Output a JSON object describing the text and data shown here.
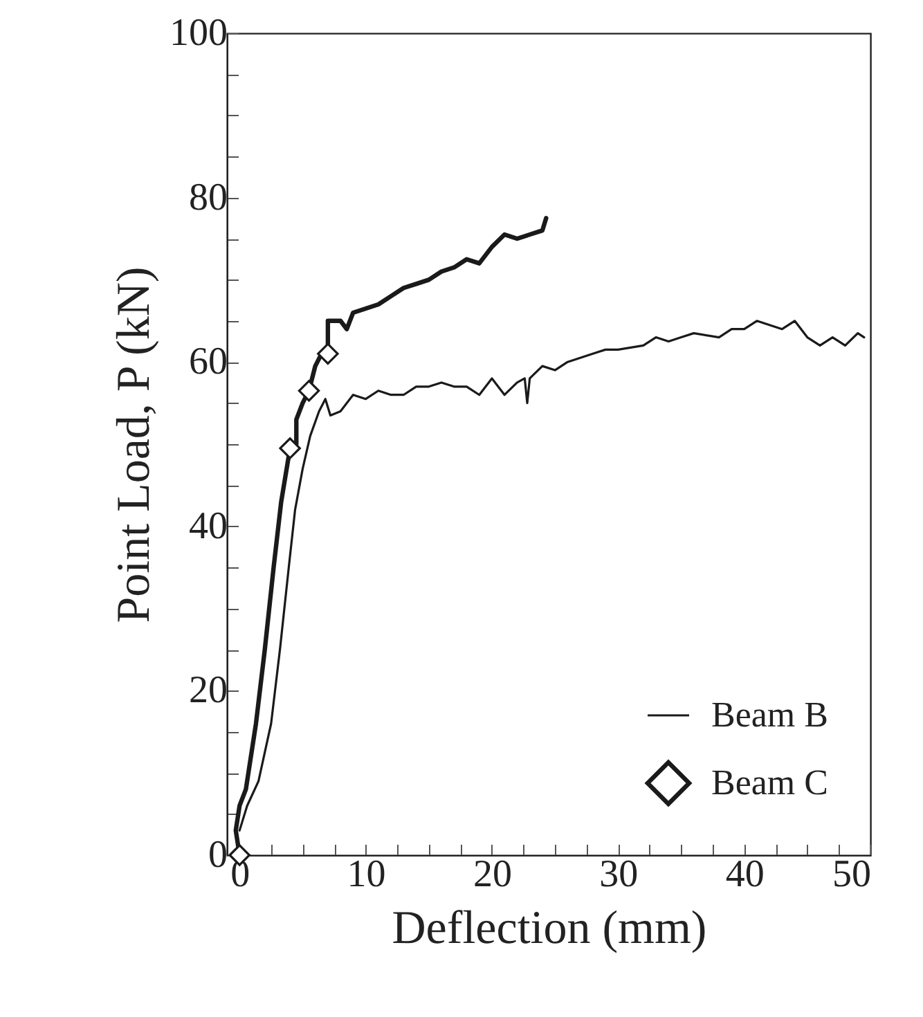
{
  "chart_data": {
    "type": "line",
    "xlabel": "Deflection (mm)",
    "ylabel": "Point Load, P (kN)",
    "xlim": [
      -1,
      50
    ],
    "ylim": [
      0,
      100
    ],
    "xticks": [
      0,
      {
        "value": 2.5,
        "label": null
      },
      {
        "value": 5,
        "label": null
      },
      {
        "value": 7.5,
        "label": null
      },
      10,
      {
        "value": 12.5,
        "label": null
      },
      {
        "value": 15,
        "label": null
      },
      {
        "value": 17.5,
        "label": null
      },
      20,
      {
        "value": 22.5,
        "label": null
      },
      {
        "value": 25,
        "label": null
      },
      {
        "value": 27.5,
        "label": null
      },
      30,
      {
        "value": 32.5,
        "label": null
      },
      {
        "value": 35,
        "label": null
      },
      {
        "value": 37.5,
        "label": null
      },
      40,
      {
        "value": 42.5,
        "label": null
      },
      {
        "value": 45,
        "label": null
      },
      {
        "value": 47.5,
        "label": null
      },
      50
    ],
    "yticks": [
      0,
      {
        "value": 5,
        "label": null
      },
      {
        "value": 10,
        "label": null
      },
      {
        "value": 15,
        "label": null
      },
      20,
      {
        "value": 25,
        "label": null
      },
      {
        "value": 30,
        "label": null
      },
      {
        "value": 35,
        "label": null
      },
      40,
      {
        "value": 45,
        "label": null
      },
      {
        "value": 50,
        "label": null
      },
      {
        "value": 55,
        "label": null
      },
      60,
      {
        "value": 65,
        "label": null
      },
      {
        "value": 70,
        "label": null
      },
      {
        "value": 75,
        "label": null
      },
      80,
      {
        "value": 85,
        "label": null
      },
      {
        "value": 90,
        "label": null
      },
      {
        "value": 95,
        "label": null
      },
      100
    ],
    "grid": false,
    "legend": "bottom right",
    "line_style": "solid",
    "series": [
      {
        "name": "Beam B",
        "color": "#1a1a1a",
        "x": [
          0,
          0.6,
          1.5,
          2.5,
          3.2,
          3.9,
          4.4,
          5,
          5.6,
          6.3,
          6.8,
          7.2,
          8,
          9,
          10,
          11,
          12,
          13,
          14,
          15,
          16,
          17,
          18,
          19,
          20,
          21,
          22,
          22.6,
          22.8,
          23,
          24,
          25,
          26,
          27,
          28,
          29,
          30,
          32,
          33,
          34,
          35,
          36,
          38,
          39,
          40,
          41,
          42,
          43,
          44,
          45,
          46,
          47,
          48,
          49,
          49.5
        ],
        "values": [
          3,
          6,
          9,
          16,
          25,
          35,
          42,
          47,
          51,
          54,
          55.5,
          53.5,
          54,
          56,
          55.5,
          56.5,
          56,
          56,
          57,
          57,
          57.5,
          57,
          57,
          56,
          58,
          56,
          57.5,
          58,
          55,
          58,
          59.5,
          59,
          60,
          60.5,
          61,
          61.5,
          61.5,
          62,
          63,
          62.5,
          63,
          63.5,
          63,
          64,
          64,
          65,
          64.5,
          64,
          65,
          63,
          62,
          63,
          62,
          63.5,
          63
        ]
      },
      {
        "name": "Beam C",
        "color": "#1a1a1a",
        "x": [
          0,
          -0.3,
          0,
          0.5,
          1.3,
          2,
          2.7,
          3.3,
          4,
          4.5,
          4.5,
          5,
          5.5,
          6,
          6.5,
          7,
          7,
          8,
          8.5,
          9,
          10,
          11,
          12,
          13,
          14,
          15,
          16,
          17,
          18,
          19,
          20,
          21,
          22,
          23,
          24,
          24.3
        ],
        "values": [
          0,
          3,
          6,
          8,
          16,
          25,
          35,
          43,
          49.5,
          50,
          53,
          55,
          56.5,
          59.5,
          61,
          61,
          65,
          65,
          64,
          66,
          66.5,
          67,
          68,
          69,
          69.5,
          70,
          71,
          71.5,
          72.5,
          72,
          74,
          75.5,
          75,
          75.5,
          76,
          77.5
        ]
      },
      {
        "type": "scatter",
        "marker": "diamond",
        "color": "#1a1a1a",
        "x": [
          0,
          4,
          5.5,
          7
        ],
        "values": [
          0,
          49.5,
          56.5,
          61
        ]
      }
    ]
  }
}
